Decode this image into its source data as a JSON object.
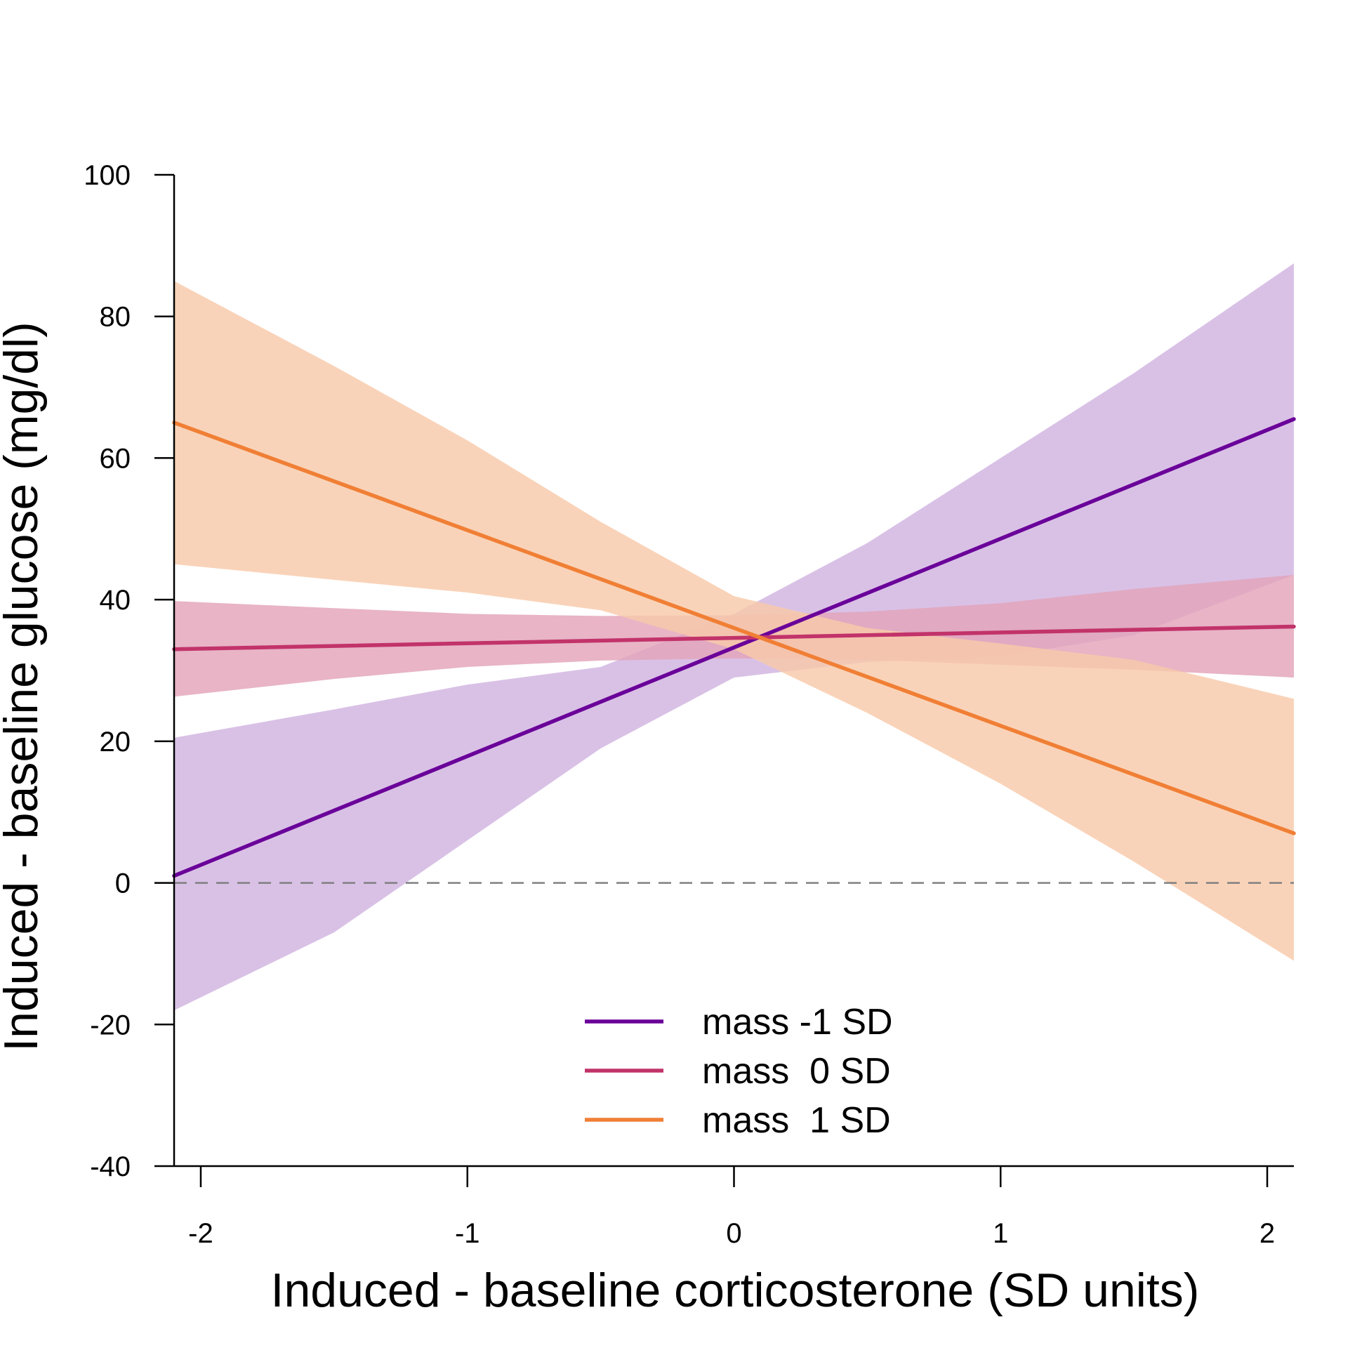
{
  "chart_data": {
    "type": "line",
    "xlabel": "Induced - baseline corticosterone (SD units)",
    "ylabel": "Induced - baseline glucose (mg/dl)",
    "xlim": [
      -2.1,
      2.1
    ],
    "ylim": [
      -40,
      100
    ],
    "x_ticks": [
      -2,
      -1,
      0,
      1,
      2
    ],
    "x_tick_labels": [
      "-2",
      "-1",
      "0",
      "1",
      "2"
    ],
    "y_ticks": [
      -40,
      -20,
      0,
      20,
      40,
      60,
      80,
      100
    ],
    "y_tick_labels": [
      "-40",
      "-20",
      "0",
      "20",
      "40",
      "60",
      "80",
      "100"
    ],
    "grid": false,
    "reference_line": {
      "y": 0,
      "style": "dashed",
      "color": "#808080"
    },
    "legend_position": "bottom-center",
    "series": [
      {
        "name": "mass -1 SD",
        "color": "#6a0099",
        "band_color": "#d1b3e0",
        "line": {
          "x": [
            -2.1,
            2.1
          ],
          "y": [
            1,
            65.5
          ]
        },
        "band": {
          "x": [
            -2.1,
            -1.5,
            -1,
            -0.5,
            0,
            0.5,
            1,
            1.5,
            2.1
          ],
          "upper": [
            20.5,
            24.5,
            28,
            30.5,
            38,
            48,
            60,
            72,
            87.5
          ],
          "lower": [
            -18,
            -7,
            6,
            19,
            29,
            31.2,
            32,
            35,
            43.5
          ]
        }
      },
      {
        "name": "mass  0 SD",
        "color": "#c2336a",
        "band_color": "#e3a3b9",
        "line": {
          "x": [
            -2.1,
            2.1
          ],
          "y": [
            33,
            36.2
          ]
        },
        "band": {
          "x": [
            -2.1,
            -1.5,
            -1,
            -0.5,
            0,
            0.5,
            1,
            1.5,
            2.1
          ],
          "upper": [
            39.8,
            38.8,
            38,
            37.7,
            37.8,
            38.3,
            39.5,
            41.5,
            43.5
          ],
          "lower": [
            26.3,
            28.8,
            30.5,
            31.4,
            31.7,
            31.5,
            30.8,
            30.1,
            29
          ]
        }
      },
      {
        "name": "mass  1 SD",
        "color": "#f07f35",
        "band_color": "#f8c9aa",
        "line": {
          "x": [
            -2.1,
            2.1
          ],
          "y": [
            65,
            7
          ]
        },
        "band": {
          "x": [
            -2.1,
            -1.5,
            -1,
            -0.5,
            0,
            0.5,
            1,
            1.5,
            2.1
          ],
          "upper": [
            85,
            73,
            62.5,
            51,
            40.5,
            36,
            33.8,
            31.5,
            26
          ],
          "lower": [
            45,
            42.8,
            41,
            38.5,
            33,
            24,
            14,
            3,
            -11
          ]
        }
      }
    ]
  }
}
